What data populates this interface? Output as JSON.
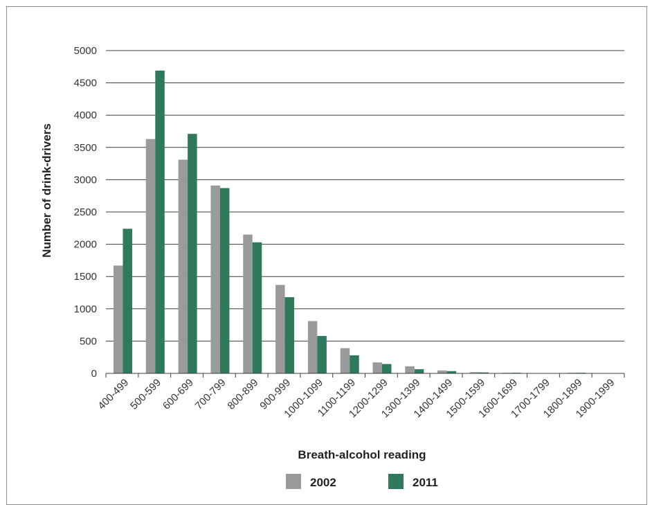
{
  "chart_data": {
    "type": "bar",
    "categories": [
      "400-499",
      "500-599",
      "600-699",
      "700-799",
      "800-899",
      "900-999",
      "1000-1099",
      "1100-1199",
      "1200-1299",
      "1300-1399",
      "1400-1499",
      "1500-1599",
      "1600-1699",
      "1700-1799",
      "1800-1899",
      "1900-1999"
    ],
    "series": [
      {
        "name": "2002",
        "color": "#999a9c",
        "values": [
          1670,
          3630,
          3310,
          2910,
          2150,
          1370,
          810,
          390,
          170,
          110,
          45,
          20,
          10,
          5,
          10,
          0
        ]
      },
      {
        "name": "2011",
        "color": "#2e7a5b",
        "values": [
          2240,
          4690,
          3710,
          2870,
          2030,
          1180,
          580,
          280,
          145,
          65,
          35,
          15,
          10,
          5,
          10,
          0
        ]
      }
    ],
    "xlabel": "Breath-alcohol reading",
    "ylabel": "Number of drink-drivers",
    "ylim": [
      0,
      5000
    ],
    "yticks": [
      0,
      500,
      1000,
      1500,
      2000,
      2500,
      3000,
      3500,
      4000,
      4500,
      5000
    ],
    "grid": true,
    "legend_position": "bottom"
  }
}
